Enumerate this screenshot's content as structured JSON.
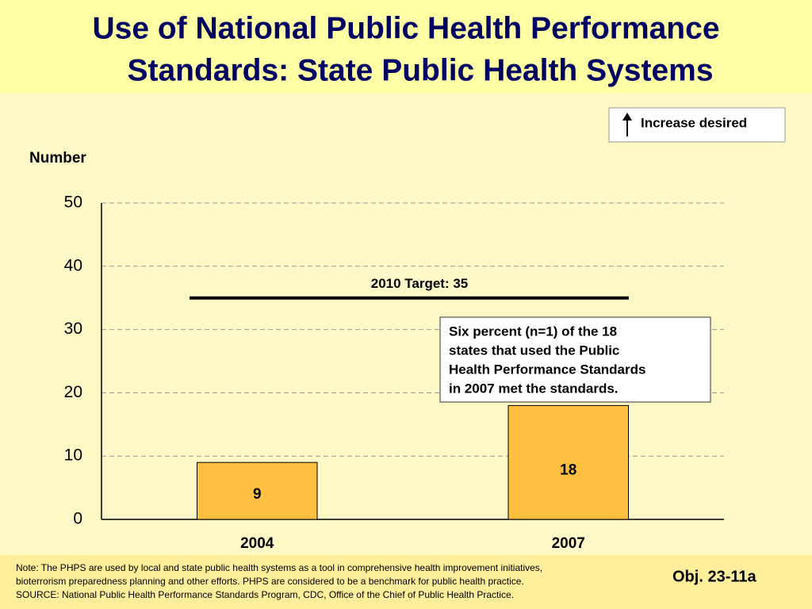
{
  "title_lines": [
    "Use of National Public Health Performance",
    "Standards: State Public Health Systems"
  ],
  "legend_note": "Increase desired",
  "chart_data": {
    "type": "bar",
    "y_label": "Number",
    "categories": [
      "2004",
      "2007"
    ],
    "values": [
      9,
      18
    ],
    "color": "#FFBF40",
    "ylim": [
      0,
      50
    ],
    "yticks": [
      0,
      10,
      20,
      30,
      40,
      50
    ],
    "grid": true,
    "target": {
      "label": "2010 Target: 35",
      "value": 35
    },
    "annotation": [
      "Six percent (n=1) of the 18",
      "states that used the Public",
      "Health Performance Standards",
      "in 2007 met the standards."
    ]
  },
  "footer": {
    "notes": [
      "Note: The PHPS are used by local and state public health systems as a tool in comprehensive health improvement initiatives,",
      "bioterrorism preparedness planning and other efforts. PHPS are considered to be a benchmark for public health practice.",
      "SOURCE:  National Public Health Performance Standards Program, CDC, Office of the Chief of Public Health Practice."
    ],
    "objective": "Obj. 23-11a"
  }
}
